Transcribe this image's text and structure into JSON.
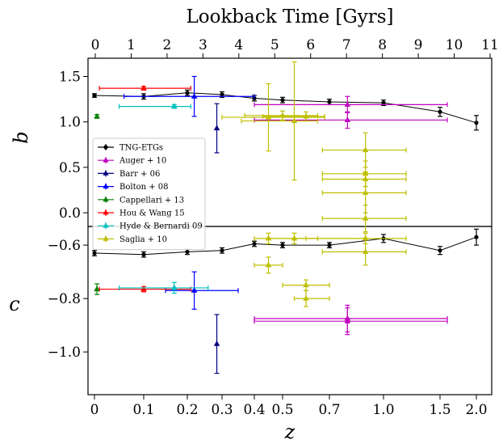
{
  "chart_data": {
    "type": "scatter",
    "top_axis": {
      "label": "Lookback Time [Gyrs]",
      "ticks": [
        "0",
        "1",
        "2",
        "3",
        "4",
        "5",
        "6",
        "7",
        "8",
        "9",
        "10",
        "11"
      ]
    },
    "x_axis": {
      "label": "z",
      "ticks": [
        "0",
        "0.1",
        "0.2",
        "0.3",
        "0.4",
        "0.5",
        "0.7",
        "1.0",
        "1.5",
        "2.0"
      ]
    },
    "panels": [
      {
        "ylabel": "b",
        "ylim": [
          -0.15,
          1.7
        ],
        "yticks": [
          "0.0",
          "0.5",
          "1.0",
          "1.5"
        ],
        "legend": "lower-left",
        "series": [
          {
            "name": "TNG-ETGs",
            "color": "#000000",
            "marker": "circle",
            "line": true,
            "points": [
              [
                0.0,
                1.29,
                0.02,
                0,
                0
              ],
              [
                0.1,
                1.28,
                0.03,
                0,
                0
              ],
              [
                0.2,
                1.32,
                0.03,
                0,
                0
              ],
              [
                0.3,
                1.3,
                0.03,
                0,
                0
              ],
              [
                0.4,
                1.26,
                0.03,
                0,
                0
              ],
              [
                0.5,
                1.24,
                0.03,
                0,
                0
              ],
              [
                0.7,
                1.22,
                0.03,
                0,
                0
              ],
              [
                1.0,
                1.21,
                0.03,
                0,
                0
              ],
              [
                1.5,
                1.11,
                0.05,
                0,
                0
              ],
              [
                2.0,
                0.99,
                0.08,
                0,
                0
              ]
            ]
          },
          {
            "name": "Auger + 10",
            "color": "#c000c0",
            "marker": "triangle",
            "points": [
              [
                0.8,
                1.19,
                0.09,
                0.4,
                1.6
              ],
              [
                0.8,
                1.02,
                0.09,
                0.4,
                1.6
              ]
            ]
          },
          {
            "name": "Barr + 06",
            "color": "#000080",
            "marker": "triangle",
            "points": [
              [
                0.285,
                0.93,
                0.27,
                0,
                0
              ]
            ]
          },
          {
            "name": "Bolton + 08",
            "color": "#0000ff",
            "marker": "triangle",
            "points": [
              [
                0.22,
                1.28,
                0.22,
                0.06,
                0.4
              ]
            ]
          },
          {
            "name": "Cappellari + 13",
            "color": "#008000",
            "marker": "triangle",
            "points": [
              [
                0.005,
                1.06,
                0.02,
                0,
                0
              ]
            ]
          },
          {
            "name": "Hou & Wang 15",
            "color": "#ff0000",
            "marker": "triangle",
            "points": [
              [
                0.1,
                1.37,
                0.02,
                0.01,
                0.21
              ]
            ]
          },
          {
            "name": "Hyde & Bernardi 09",
            "color": "#00bfbf",
            "marker": "triangle",
            "points": [
              [
                0.17,
                1.17,
                0.02,
                0.05,
                0.21
              ]
            ]
          },
          {
            "name": "Saglia + 10",
            "color": "#bfbf00",
            "marker": "triangle",
            "points": [
              [
                0.45,
                1.05,
                0.37,
                0.3,
                0.68
              ],
              [
                0.5,
                1.07,
                0.05,
                0.37,
                0.65
              ],
              [
                0.55,
                1.01,
                0.65,
                0.36,
                0.65
              ],
              [
                0.6,
                1.06,
                0.05,
                0.43,
                0.68
              ],
              [
                0.9,
                0.69,
                0.19,
                0.67,
                1.2
              ],
              [
                0.9,
                0.43,
                0.14,
                0.67,
                1.2
              ],
              [
                0.9,
                0.37,
                0.08,
                0.67,
                1.2
              ],
              [
                0.9,
                0.22,
                0.22,
                0.67,
                1.2
              ]
            ]
          }
        ]
      },
      {
        "ylabel": "c",
        "ylim": [
          -1.16,
          -0.53
        ],
        "yticks": [
          "-0.6",
          "-0.8",
          "-1.0"
        ],
        "legend": "",
        "series": [
          {
            "name": "TNG-ETGs",
            "color": "#000000",
            "marker": "circle",
            "line": true,
            "points": [
              [
                0.0,
                -0.63,
                0.01,
                0,
                0
              ],
              [
                0.1,
                -0.635,
                0.01,
                0,
                0
              ],
              [
                0.2,
                -0.625,
                0.01,
                0,
                0
              ],
              [
                0.3,
                -0.62,
                0.01,
                0,
                0
              ],
              [
                0.4,
                -0.595,
                0.01,
                0,
                0
              ],
              [
                0.5,
                -0.6,
                0.01,
                0,
                0
              ],
              [
                0.7,
                -0.6,
                0.01,
                0,
                0
              ],
              [
                1.0,
                -0.575,
                0.015,
                0,
                0
              ],
              [
                1.5,
                -0.62,
                0.015,
                0,
                0
              ],
              [
                2.0,
                -0.57,
                0.03,
                0,
                0
              ]
            ]
          },
          {
            "name": "Auger + 10",
            "color": "#c000c0",
            "marker": "triangle",
            "points": [
              [
                0.8,
                -0.875,
                0.05,
                0.4,
                1.6
              ],
              [
                0.8,
                -0.885,
                0.05,
                0.4,
                1.6
              ]
            ]
          },
          {
            "name": "Barr + 06",
            "color": "#000080",
            "marker": "triangle",
            "points": [
              [
                0.285,
                -0.97,
                0.11,
                0,
                0
              ]
            ]
          },
          {
            "name": "Bolton + 08",
            "color": "#0000ff",
            "marker": "triangle",
            "points": [
              [
                0.22,
                -0.77,
                0.07,
                0.15,
                0.35
              ]
            ]
          },
          {
            "name": "Cappellari + 13",
            "color": "#008000",
            "marker": "triangle",
            "points": [
              [
                0.005,
                -0.765,
                0.02,
                0,
                0
              ]
            ]
          },
          {
            "name": "Hou & Wang 15",
            "color": "#ff0000",
            "marker": "triangle",
            "points": [
              [
                0.1,
                -0.765,
                0.01,
                0.01,
                0.21
              ]
            ]
          },
          {
            "name": "Hyde & Bernardi 09",
            "color": "#00bfbf",
            "marker": "triangle",
            "points": [
              [
                0.17,
                -0.76,
                0.02,
                0.05,
                0.26
              ]
            ]
          },
          {
            "name": "Saglia + 10",
            "color": "#bfbf00",
            "marker": "triangle",
            "points": [
              [
                0.45,
                -0.575,
                0.02,
                0.4,
                0.9
              ],
              [
                0.45,
                -0.675,
                0.03,
                0.4,
                0.5
              ],
              [
                0.55,
                -0.575,
                0.02,
                0.45,
                0.65
              ],
              [
                0.6,
                -0.75,
                0.02,
                0.5,
                0.7
              ],
              [
                0.6,
                -0.8,
                0.03,
                0.55,
                0.7
              ],
              [
                0.9,
                -0.575,
                0.02,
                0.6,
                1.2
              ],
              [
                0.9,
                -0.5,
                0.05,
                0.67,
                1.2
              ],
              [
                0.9,
                -0.625,
                0.05,
                0.67,
                1.2
              ]
            ]
          }
        ]
      }
    ],
    "legend": {
      "entries": [
        "TNG-ETGs",
        "Auger + 10",
        "Barr + 06",
        "Bolton + 08",
        "Cappellari + 13",
        "Hou & Wang 15",
        "Hyde & Bernardi 09",
        "Saglia + 10"
      ]
    }
  }
}
